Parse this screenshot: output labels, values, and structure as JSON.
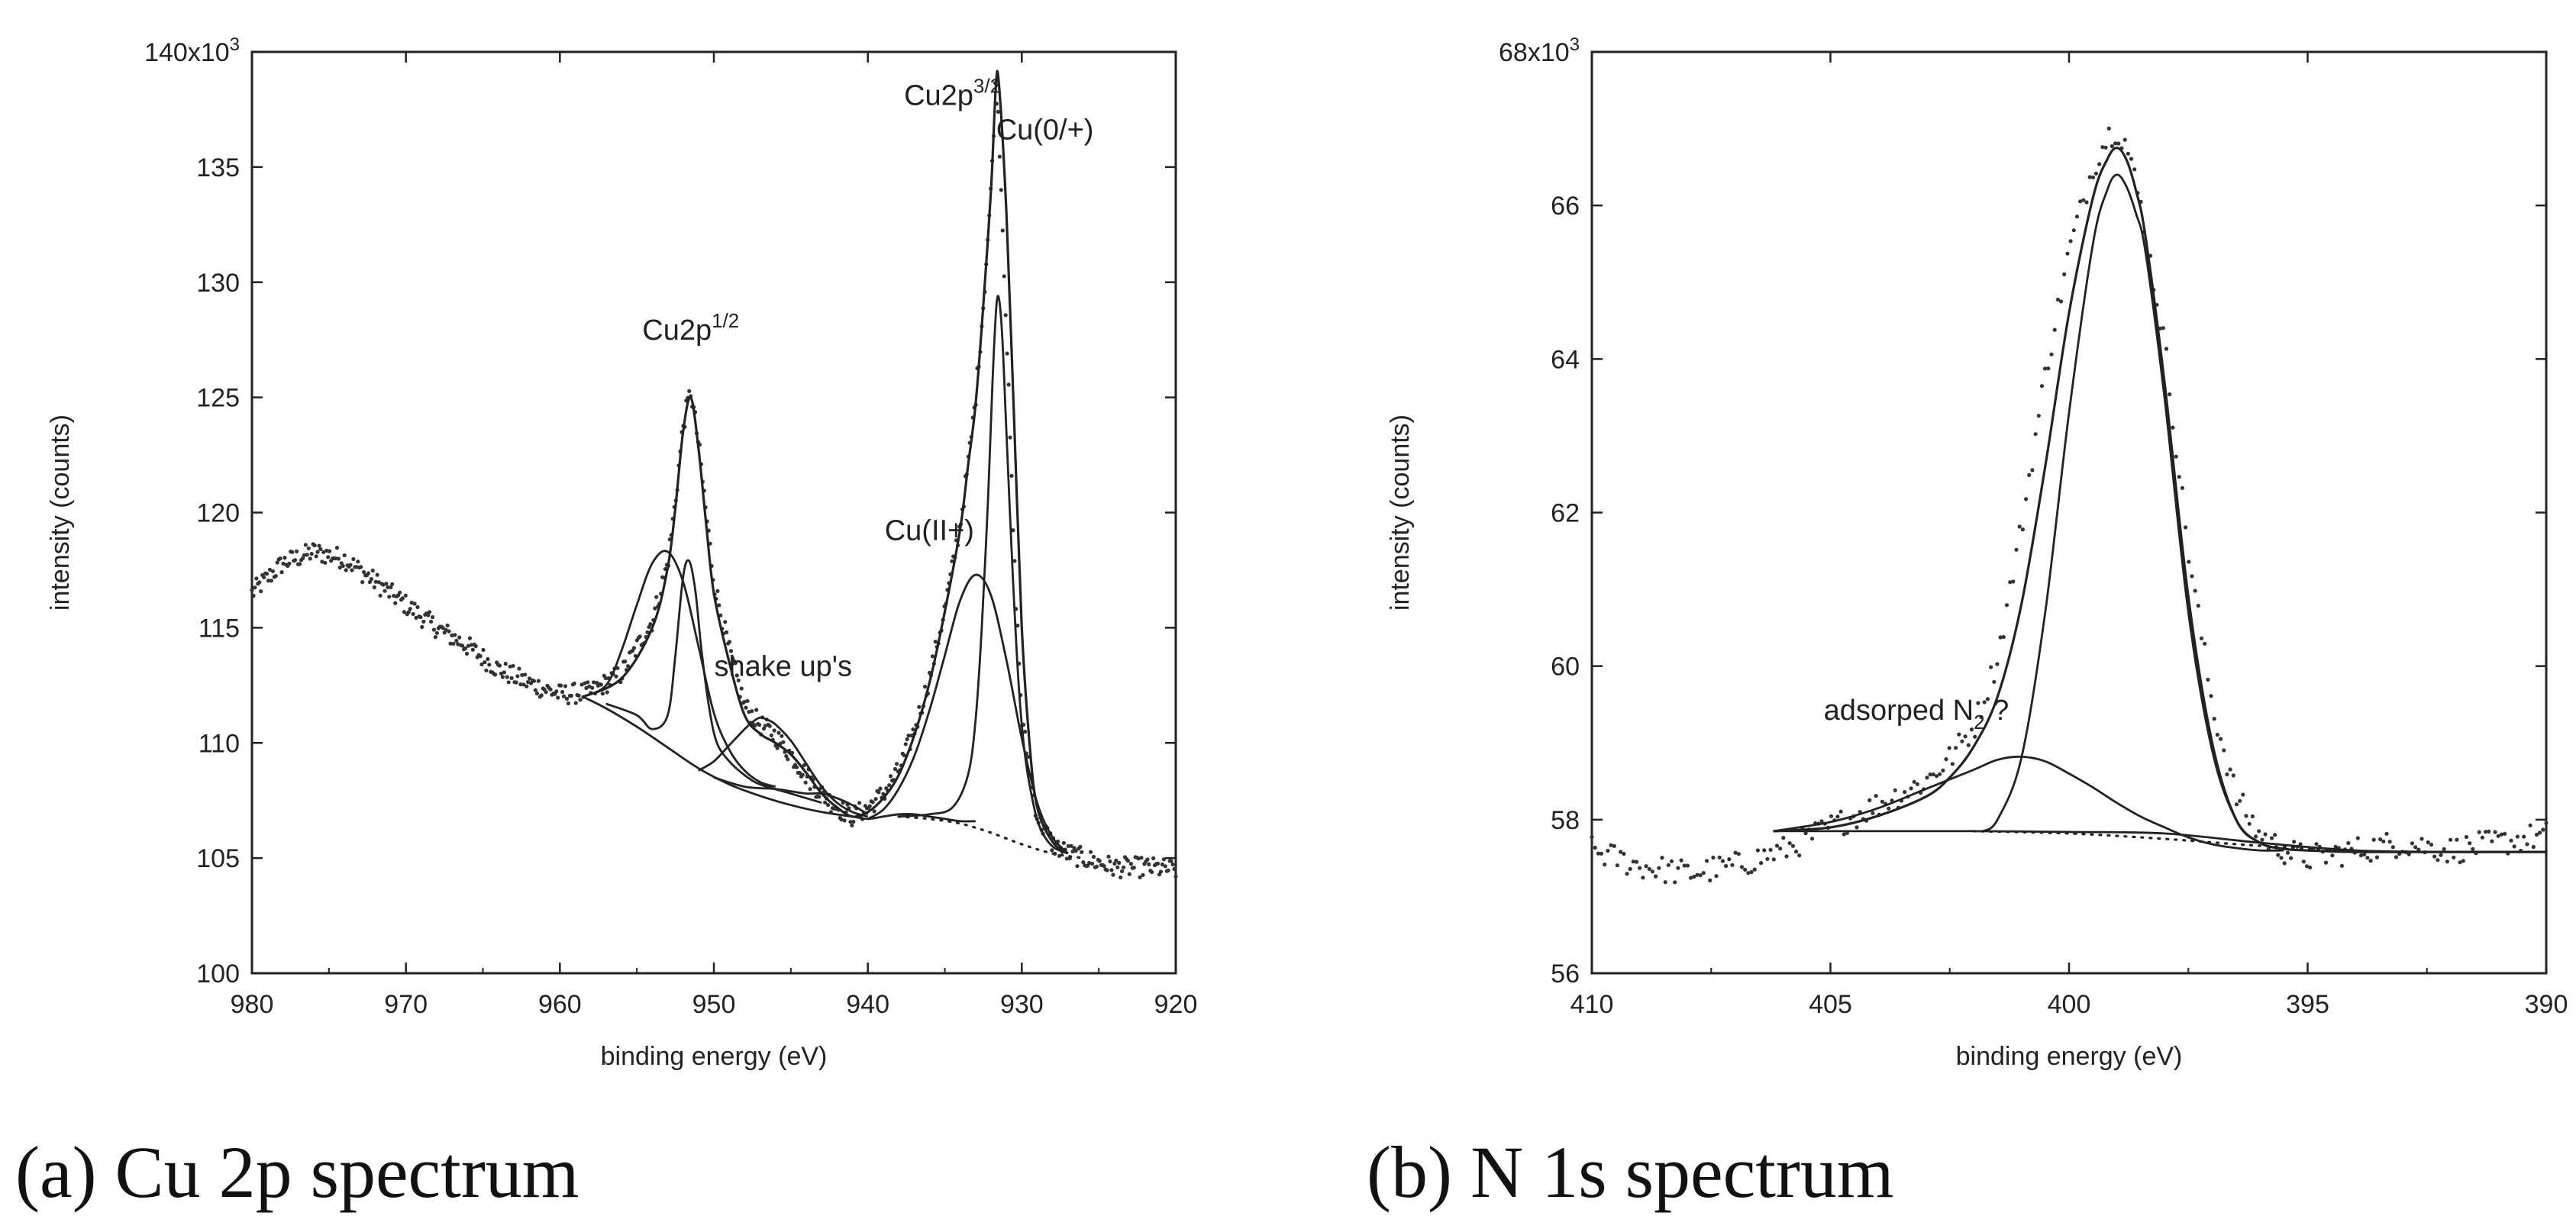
{
  "chart_data": [
    {
      "type": "scatter",
      "caption": "(a) Cu 2p spectrum",
      "xlabel": "binding energy (eV)",
      "ylabel": "intensity (counts)",
      "xlim": [
        980,
        920
      ],
      "ylim": [
        100,
        140
      ],
      "x_ticks": [
        980,
        970,
        960,
        950,
        940,
        930,
        920
      ],
      "y_ticks": [
        100,
        105,
        110,
        115,
        120,
        125,
        130,
        135,
        140
      ],
      "y_top_label": "140x10",
      "y_top_exp": "3",
      "grid": false,
      "annotations": [
        {
          "base": "Cu2p",
          "sup": "1/2",
          "x": 951.5,
          "y": 127.5
        },
        {
          "base": "Cu2p",
          "sup": "3/2",
          "x": 934.5,
          "y": 137.7
        },
        {
          "base": "Cu(0/+)",
          "sup": "",
          "x": 928.5,
          "y": 136.2
        },
        {
          "base": "Cu(II+)",
          "sup": "",
          "x": 936.0,
          "y": 118.8
        },
        {
          "base": "shake up's",
          "sup": "",
          "x": 945.5,
          "y": 112.9
        }
      ],
      "series": [
        {
          "name": "data",
          "kind": "points",
          "noise": 0.45,
          "x": [
            980,
            978,
            976,
            974,
            972,
            970,
            968,
            966,
            964,
            962,
            960,
            958,
            956,
            954,
            953,
            952.5,
            952,
            951.5,
            951,
            950.5,
            950,
            949,
            948,
            947,
            946,
            945,
            944,
            943,
            942,
            941,
            940,
            939,
            938,
            937,
            936,
            935,
            934,
            933.5,
            933,
            932.5,
            932,
            931.7,
            931.5,
            931,
            930.5,
            930,
            929,
            928,
            927,
            926,
            925,
            924,
            922,
            920
          ],
          "y": [
            116.5,
            117.8,
            118.3,
            118,
            117,
            116,
            115,
            114.2,
            113.2,
            112.6,
            112.1,
            112.2,
            113,
            115.3,
            117.8,
            120.5,
            123.8,
            125.3,
            123,
            120,
            117,
            114,
            111.6,
            110.8,
            110.3,
            109.5,
            108.6,
            107.8,
            107.2,
            106.8,
            107.2,
            107.8,
            108.8,
            110.5,
            112.8,
            115.8,
            119.5,
            122,
            125,
            129,
            134,
            138.8,
            137,
            128,
            118,
            111,
            106.8,
            105.6,
            105.2,
            105,
            104.8,
            104.6,
            104.6,
            104.5
          ]
        },
        {
          "name": "envelope",
          "kind": "line",
          "x": [
            958.5,
            956,
            954,
            953,
            952.5,
            952,
            951.5,
            951,
            950.5,
            950,
            949,
            948,
            947,
            946,
            945,
            944,
            943,
            942,
            941,
            940,
            939,
            938,
            937,
            936,
            935,
            934,
            933.5,
            933,
            932.5,
            932,
            931.7,
            931.5,
            931,
            930.5,
            930,
            929.5,
            929,
            928,
            927
          ],
          "y": [
            112,
            112.8,
            115,
            117.6,
            120.2,
            123.5,
            125,
            122.8,
            119.5,
            116.5,
            113.5,
            111.2,
            110.4,
            110,
            109.5,
            108.7,
            107.8,
            107.2,
            106.8,
            107,
            107.6,
            108.6,
            110.3,
            112.6,
            115.7,
            119.3,
            122,
            124.7,
            129,
            134,
            138.3,
            138.7,
            133,
            124,
            115,
            110,
            107.2,
            105.7,
            105.2
          ]
        },
        {
          "name": "cu2p32-metal",
          "kind": "line",
          "x": [
            938,
            936,
            934.5,
            933.5,
            933,
            932.6,
            932.2,
            931.9,
            931.6,
            931.3,
            931,
            930.6,
            930.2,
            929.8,
            929.3,
            928.8,
            928,
            927
          ],
          "y": [
            106.8,
            106.9,
            107.2,
            108.6,
            111,
            115,
            120.5,
            125.7,
            129.3,
            128,
            123.5,
            117.5,
            112.5,
            109.5,
            107.5,
            106.3,
            105.5,
            105.2
          ]
        },
        {
          "name": "cu2p32-cuII",
          "kind": "line",
          "x": [
            940,
            939,
            938,
            937,
            936,
            935,
            934,
            933,
            932,
            931,
            930,
            929,
            928,
            927
          ],
          "y": [
            106.7,
            107.1,
            108,
            109.4,
            111.4,
            113.8,
            116.2,
            117.3,
            116.4,
            113.6,
            110.2,
            107.4,
            105.9,
            105.2
          ]
        },
        {
          "name": "cu2p12-metal",
          "kind": "line",
          "x": [
            957,
            955,
            954,
            953,
            952.5,
            952,
            951.6,
            951.2,
            950.8,
            950.3,
            949.8,
            949,
            948,
            947,
            945,
            943
          ],
          "y": [
            111.7,
            111.2,
            110.6,
            111.2,
            113.8,
            117.2,
            117.9,
            116.6,
            114,
            111.5,
            110,
            109.2,
            108.6,
            108.2,
            107.8,
            107.4
          ]
        },
        {
          "name": "cu2p12-cuII",
          "kind": "line",
          "x": [
            958.5,
            957,
            956,
            955,
            954,
            953,
            952,
            951,
            950,
            949,
            948,
            947,
            946
          ],
          "y": [
            112,
            112.5,
            114,
            116,
            117.8,
            118.3,
            117,
            114.2,
            111.3,
            109.7,
            108.8,
            108.3,
            108.1
          ]
        },
        {
          "name": "shakeup-1",
          "kind": "line",
          "x": [
            951,
            950,
            949,
            948,
            947.5,
            947,
            946.5,
            946,
            945,
            944,
            943,
            942,
            941,
            940
          ],
          "y": [
            108.8,
            109.2,
            109.9,
            110.6,
            110.9,
            111.1,
            111,
            110.8,
            110.1,
            109.1,
            108.1,
            107.4,
            107,
            106.8
          ]
        },
        {
          "name": "shakeup-2",
          "kind": "line",
          "x": [
            950,
            948,
            946,
            945,
            944,
            943,
            942,
            941,
            940
          ],
          "y": [
            108.5,
            108.1,
            108,
            107.9,
            107.8,
            107.8,
            107.6,
            107.3,
            106.9
          ]
        },
        {
          "name": "background",
          "kind": "line",
          "x": [
            958.5,
            957,
            955,
            953,
            951,
            949,
            947,
            945,
            943,
            941,
            940,
            939,
            938,
            937,
            936,
            935,
            934,
            933
          ],
          "y": [
            112,
            111.5,
            110.7,
            109.8,
            108.9,
            108.2,
            107.7,
            107.3,
            107,
            106.8,
            106.7,
            106.8,
            106.9,
            106.9,
            106.8,
            106.7,
            106.6,
            106.6
          ]
        },
        {
          "name": "background-dotted",
          "kind": "dotted",
          "x": [
            938,
            936,
            934,
            932,
            930,
            928,
            926
          ],
          "y": [
            106.8,
            106.7,
            106.5,
            106.1,
            105.6,
            105.2,
            105
          ]
        }
      ]
    },
    {
      "type": "scatter",
      "caption": "(b) N 1s spectrum",
      "xlabel": "binding energy (eV)",
      "ylabel": "intensity (counts)",
      "xlim": [
        410,
        390
      ],
      "ylim": [
        56,
        68
      ],
      "x_ticks": [
        410,
        405,
        400,
        395,
        390
      ],
      "y_ticks": [
        56,
        58,
        60,
        62,
        64,
        66,
        68
      ],
      "y_top_label": "68x10",
      "y_top_exp": "3",
      "grid": false,
      "annotations": [
        {
          "base": "adsorped N",
          "sub": "2",
          "tail": " ?",
          "x": 403.2,
          "y": 59.3
        }
      ],
      "series": [
        {
          "name": "data",
          "kind": "points",
          "noise": 0.18,
          "x": [
            410,
            409,
            408,
            407,
            406,
            405,
            404,
            403,
            402.5,
            402,
            401.5,
            401,
            400.5,
            400,
            399.5,
            399.2,
            399,
            398.8,
            398.5,
            398,
            397.5,
            397,
            396.5,
            396,
            395.5,
            395,
            394,
            393,
            392,
            391,
            390
          ],
          "y": [
            57.6,
            57.4,
            57.3,
            57.4,
            57.6,
            57.9,
            58.2,
            58.5,
            58.8,
            59.2,
            60.1,
            61.8,
            63.8,
            65.4,
            66.5,
            66.9,
            67,
            66.8,
            66,
            64.2,
            61.5,
            59.5,
            58.3,
            57.8,
            57.6,
            57.5,
            57.6,
            57.7,
            57.6,
            57.7,
            57.8
          ]
        },
        {
          "name": "envelope",
          "kind": "line",
          "x": [
            406.2,
            405,
            404,
            403,
            402.5,
            402,
            401.5,
            401,
            400.5,
            400,
            399.5,
            399.2,
            399,
            398.8,
            398.6,
            398.4,
            398,
            397.5,
            397,
            396.5,
            396,
            395.5,
            395,
            394,
            392,
            390
          ],
          "y": [
            57.85,
            57.9,
            58.05,
            58.3,
            58.55,
            58.95,
            59.6,
            60.8,
            62.6,
            64.6,
            66.1,
            66.6,
            66.75,
            66.6,
            66.2,
            65.6,
            63.7,
            60.9,
            59,
            58,
            57.7,
            57.62,
            57.6,
            57.58,
            57.58,
            57.58
          ]
        },
        {
          "name": "main-peak",
          "kind": "line",
          "x": [
            401.8,
            401.5,
            401,
            400.5,
            400,
            399.5,
            399.2,
            399,
            398.8,
            398.6,
            398.4,
            398,
            397.5,
            397,
            396.5,
            396,
            395.5,
            395
          ],
          "y": [
            57.85,
            58,
            58.8,
            60.7,
            63.3,
            65.5,
            66.2,
            66.4,
            66.25,
            65.9,
            65.4,
            63.5,
            60.7,
            58.9,
            58,
            57.7,
            57.62,
            57.6
          ]
        },
        {
          "name": "adsorbed-n2",
          "kind": "line",
          "x": [
            406.2,
            405,
            404,
            403,
            402,
            401.5,
            401,
            400.5,
            400,
            399.5,
            399,
            398.5,
            398,
            397.5,
            397,
            396.5,
            396,
            395.5
          ],
          "y": [
            57.85,
            57.97,
            58.15,
            58.4,
            58.65,
            58.78,
            58.82,
            58.76,
            58.6,
            58.42,
            58.22,
            58.04,
            57.9,
            57.77,
            57.68,
            57.63,
            57.6,
            57.6
          ]
        },
        {
          "name": "background",
          "kind": "line",
          "x": [
            406.2,
            404,
            402,
            400,
            398,
            396,
            394,
            392,
            390
          ],
          "y": [
            57.85,
            57.85,
            57.85,
            57.84,
            57.82,
            57.7,
            57.6,
            57.58,
            57.58
          ]
        },
        {
          "name": "background-dotted",
          "kind": "dotted",
          "x": [
            402,
            400,
            398,
            396,
            394
          ],
          "y": [
            57.85,
            57.82,
            57.75,
            57.66,
            57.6
          ]
        }
      ]
    }
  ]
}
